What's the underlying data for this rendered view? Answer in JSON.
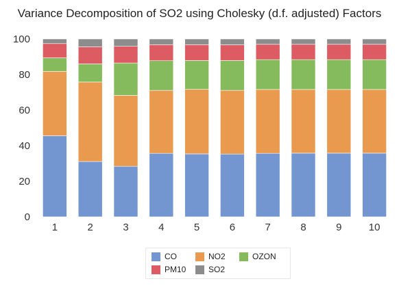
{
  "chart_data": {
    "type": "bar",
    "stacked": true,
    "title": "Variance Decomposition of SO2 using Cholesky (d.f. adjusted) Factors",
    "categories": [
      "1",
      "2",
      "3",
      "4",
      "5",
      "6",
      "7",
      "8",
      "9",
      "10"
    ],
    "ylim": [
      0,
      100
    ],
    "yticks": [
      "0",
      "20",
      "40",
      "60",
      "80",
      "100"
    ],
    "legend_position": "bottom",
    "grid": false,
    "series": [
      {
        "name": "CO",
        "color": "#7396d1",
        "values": [
          45.6,
          31.1,
          28.4,
          35.7,
          35.4,
          35.3,
          35.7,
          35.8,
          35.8,
          35.8
        ]
      },
      {
        "name": "NO2",
        "color": "#e99a4f",
        "values": [
          36.2,
          44.7,
          39.9,
          35.4,
          36.3,
          35.8,
          35.9,
          35.8,
          35.8,
          35.8
        ]
      },
      {
        "name": "OZON",
        "color": "#86bb5d",
        "values": [
          7.6,
          10.2,
          18.2,
          16.7,
          16.2,
          16.8,
          16.8,
          16.8,
          16.8,
          16.8
        ]
      },
      {
        "name": "PM10",
        "color": "#dd5c63",
        "values": [
          8.0,
          9.6,
          9.4,
          9.0,
          8.9,
          8.8,
          8.6,
          8.6,
          8.6,
          8.6
        ]
      },
      {
        "name": "SO2",
        "color": "#8c8c8c",
        "values": [
          2.6,
          4.4,
          4.1,
          3.2,
          3.2,
          3.3,
          3.0,
          3.0,
          3.0,
          3.0
        ]
      }
    ]
  }
}
